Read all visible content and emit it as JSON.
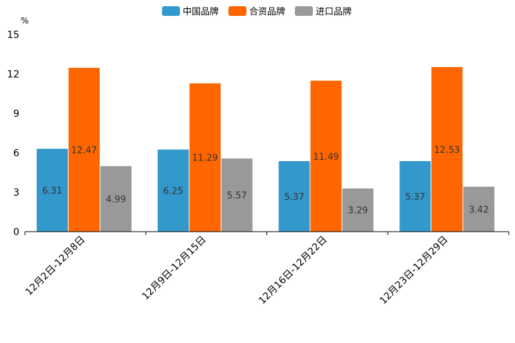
{
  "chart_data": {
    "type": "bar",
    "title": "",
    "unit": "%",
    "xlabel": "",
    "ylabel": "%",
    "ylim": [
      0,
      15
    ],
    "yticks": [
      0,
      3,
      6,
      9,
      12,
      15
    ],
    "categories": [
      "12月2日-12月8日",
      "12月9日-12月15日",
      "12月16日-12月22日",
      "12月23日-12月29日"
    ],
    "series": [
      {
        "name": "中国品牌",
        "color": "#3399cc",
        "values": [
          6.31,
          6.25,
          5.37,
          5.37
        ]
      },
      {
        "name": "合资品牌",
        "color": "#ff6600",
        "values": [
          12.47,
          11.29,
          11.49,
          12.53
        ]
      },
      {
        "name": "进口品牌",
        "color": "#999999",
        "values": [
          4.99,
          5.57,
          3.29,
          3.42
        ]
      }
    ],
    "legend_position": "top-center",
    "grid": false
  }
}
